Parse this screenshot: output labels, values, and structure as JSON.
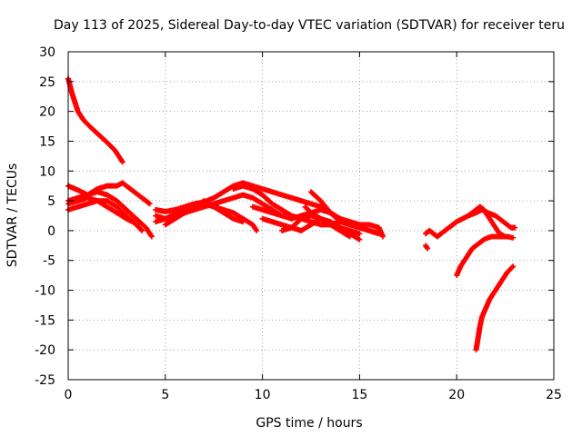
{
  "chart_data": {
    "type": "scatter",
    "title": "Day 113 of 2025, Sidereal Day-to-day VTEC variation (SDTVAR) for receiver teru",
    "xlabel": "GPS time / hours",
    "ylabel": "SDTVAR / TECUs",
    "xlim": [
      0,
      25
    ],
    "ylim": [
      -25,
      30
    ],
    "xticks": [
      0,
      5,
      10,
      15,
      20,
      25
    ],
    "yticks": [
      -25,
      -20,
      -15,
      -10,
      -5,
      0,
      5,
      10,
      15,
      20,
      25,
      30
    ],
    "grid": true,
    "legend": "none",
    "marker": "+",
    "series": [
      {
        "name": "track-1",
        "color": "#ff0000",
        "x": [
          0,
          0.2,
          0.5,
          0.8,
          1.2,
          1.6,
          2.0,
          2.4,
          2.8
        ],
        "y": [
          25.5,
          23,
          20,
          18.5,
          17.2,
          16,
          14.8,
          13.5,
          11.5
        ]
      },
      {
        "name": "track-2",
        "color": "#ff0000",
        "x": [
          0,
          0.5,
          1.0,
          1.5,
          2.0,
          2.5,
          2.8,
          3.2,
          3.6,
          4.0,
          4.2
        ],
        "y": [
          7.5,
          6.8,
          6.0,
          7.0,
          7.5,
          7.5,
          8.0,
          7.0,
          6.0,
          5.0,
          4.5
        ]
      },
      {
        "name": "track-3",
        "color": "#ff0000",
        "x": [
          0,
          0.5,
          1.0,
          1.5,
          2.0,
          2.5,
          3.0,
          3.5,
          4.0,
          4.3
        ],
        "y": [
          5.0,
          5.5,
          6.0,
          6.5,
          6.0,
          5.0,
          3.5,
          2.0,
          0.5,
          -1.0
        ]
      },
      {
        "name": "track-4",
        "color": "#ff0000",
        "x": [
          0,
          0.5,
          1.0,
          1.5,
          2.0,
          2.5,
          3.0,
          3.5,
          3.8
        ],
        "y": [
          3.5,
          4.0,
          4.5,
          5.0,
          5.0,
          4.0,
          2.5,
          1.0,
          0.0
        ]
      },
      {
        "name": "track-5",
        "color": "#ff0000",
        "x": [
          0,
          0.5,
          1.0,
          1.5,
          2.0,
          2.5,
          3.0,
          3.3
        ],
        "y": [
          4.5,
          5.0,
          5.5,
          5.0,
          4.0,
          3.0,
          2.0,
          1.5
        ]
      },
      {
        "name": "track-6",
        "color": "#ff0000",
        "x": [
          4.5,
          5.0,
          5.5,
          6.0,
          6.5,
          7.0,
          7.5,
          8.0,
          8.5,
          9.0,
          9.5,
          10.0,
          10.5,
          11.0,
          11.5,
          12.0,
          12.5,
          13.0,
          13.5,
          14.0,
          14.5
        ],
        "y": [
          3.5,
          3.2,
          3.5,
          4.0,
          4.5,
          4.8,
          5.5,
          6.5,
          7.5,
          8.0,
          7.5,
          7.0,
          6.5,
          6.0,
          5.5,
          5.0,
          4.5,
          4.0,
          3.0,
          2.0,
          1.0
        ]
      },
      {
        "name": "track-7",
        "color": "#ff0000",
        "x": [
          4.5,
          5.0,
          5.5,
          6.0,
          6.5,
          7.0,
          7.5,
          8.0,
          8.5,
          9.0,
          9.5,
          10.0,
          10.5,
          11.0
        ],
        "y": [
          1.5,
          2.0,
          2.5,
          3.0,
          3.5,
          4.0,
          4.5,
          5.0,
          5.5,
          6.0,
          5.5,
          4.5,
          3.5,
          2.5
        ]
      },
      {
        "name": "track-8",
        "color": "#ff0000",
        "x": [
          4.5,
          5.0,
          5.5,
          6.0,
          6.5,
          7.0,
          7.5,
          8.0,
          8.5,
          9.0,
          9.5,
          9.7
        ],
        "y": [
          2.5,
          2.0,
          2.8,
          3.5,
          4.0,
          4.5,
          4.0,
          3.5,
          3.0,
          2.0,
          1.0,
          0.0
        ]
      },
      {
        "name": "track-9",
        "color": "#ff0000",
        "x": [
          5.0,
          5.5,
          6.0,
          6.5,
          7.0,
          7.5,
          8.0,
          8.5,
          9.0
        ],
        "y": [
          1.0,
          2.0,
          3.0,
          4.0,
          5.0,
          4.0,
          3.0,
          2.0,
          1.5
        ]
      },
      {
        "name": "track-10",
        "color": "#ff0000",
        "x": [
          8.5,
          9.0,
          9.5,
          10.0,
          10.5,
          11.0,
          11.5,
          12.0,
          12.5,
          13.0,
          13.5,
          14.0,
          14.5,
          15.0,
          15.5,
          16.0
        ],
        "y": [
          7.0,
          7.5,
          7.0,
          6.0,
          4.5,
          3.5,
          2.5,
          2.0,
          1.5,
          1.0,
          1.0,
          1.5,
          1.0,
          0.5,
          0.0,
          -0.5
        ]
      },
      {
        "name": "track-11",
        "color": "#ff0000",
        "x": [
          9.5,
          10.0,
          10.5,
          11.0,
          11.5,
          12.0,
          12.5,
          13.0,
          13.5,
          14.0,
          14.5,
          15.0,
          15.5,
          16.0,
          16.2
        ],
        "y": [
          4.0,
          3.5,
          3.0,
          2.5,
          2.0,
          2.5,
          3.0,
          3.5,
          3.0,
          2.0,
          1.5,
          1.0,
          1.0,
          0.5,
          -1.0
        ]
      },
      {
        "name": "track-12",
        "color": "#ff0000",
        "x": [
          10.0,
          10.5,
          11.0,
          11.5,
          12.0,
          12.5,
          13.0,
          13.5,
          14.0,
          14.5
        ],
        "y": [
          2.0,
          1.5,
          1.0,
          0.5,
          0.0,
          1.0,
          2.0,
          1.0,
          0.0,
          -1.0
        ]
      },
      {
        "name": "track-13",
        "color": "#ff0000",
        "x": [
          11.0,
          11.5,
          12.0,
          12.5,
          13.0,
          13.5,
          14.0,
          14.5,
          15.0
        ],
        "y": [
          0.0,
          0.5,
          2.0,
          2.5,
          2.0,
          1.0,
          0.5,
          0.0,
          -0.5
        ]
      },
      {
        "name": "track-14",
        "color": "#ff0000",
        "x": [
          12.5,
          13.0,
          13.5,
          14.0,
          14.5,
          15.0,
          15.5,
          16.0
        ],
        "y": [
          6.5,
          5.0,
          3.0,
          1.5,
          1.0,
          0.5,
          0.0,
          -0.5
        ]
      },
      {
        "name": "track-15",
        "color": "#ff0000",
        "x": [
          12.2,
          12.5,
          13.0,
          13.5,
          14.0,
          14.5,
          15.0
        ],
        "y": [
          4.0,
          3.0,
          2.0,
          1.5,
          0.5,
          -0.5,
          -1.5
        ]
      },
      {
        "name": "track-16",
        "color": "#ff0000",
        "x": [
          18.4,
          18.6,
          18.8,
          19.0,
          19.2,
          19.4,
          19.6,
          19.8,
          20.0,
          20.3,
          20.6,
          21.0,
          21.3,
          21.6,
          22.0,
          22.4,
          22.8,
          23.0
        ],
        "y": [
          -0.5,
          0.0,
          -0.5,
          -1.0,
          -0.5,
          0.0,
          0.5,
          1.0,
          1.5,
          2.0,
          2.5,
          3.0,
          3.5,
          3.0,
          2.5,
          1.5,
          0.5,
          0.5
        ]
      },
      {
        "name": "track-17",
        "color": "#ff0000",
        "x": [
          18.4,
          18.5
        ],
        "y": [
          -2.5,
          -3.0
        ]
      },
      {
        "name": "track-18",
        "color": "#ff0000",
        "x": [
          20.0,
          20.2,
          20.4,
          20.6,
          20.8,
          21.0,
          21.2,
          21.4,
          21.6,
          21.8,
          22.0,
          22.3,
          22.6,
          22.9
        ],
        "y": [
          -7.5,
          -6.0,
          -5.0,
          -4.0,
          -3.0,
          -2.5,
          -2.0,
          -1.5,
          -1.2,
          -1.0,
          -1.0,
          -1.0,
          -1.0,
          -1.2
        ]
      },
      {
        "name": "track-19",
        "color": "#ff0000",
        "x": [
          20.6,
          20.8,
          21.0,
          21.2,
          21.4,
          21.6,
          21.8,
          22.0,
          22.2,
          22.5
        ],
        "y": [
          2.5,
          3.0,
          3.5,
          4.0,
          3.5,
          2.5,
          1.5,
          0.5,
          -0.5,
          -1.0
        ]
      },
      {
        "name": "track-20",
        "color": "#ff0000",
        "x": [
          21.0,
          21.1,
          21.2,
          21.3,
          21.5,
          21.7,
          22.0,
          22.3,
          22.6,
          22.9
        ],
        "y": [
          -20.0,
          -18.0,
          -16.0,
          -14.5,
          -13.0,
          -11.5,
          -10.0,
          -8.5,
          -7.0,
          -6.0
        ]
      }
    ]
  }
}
